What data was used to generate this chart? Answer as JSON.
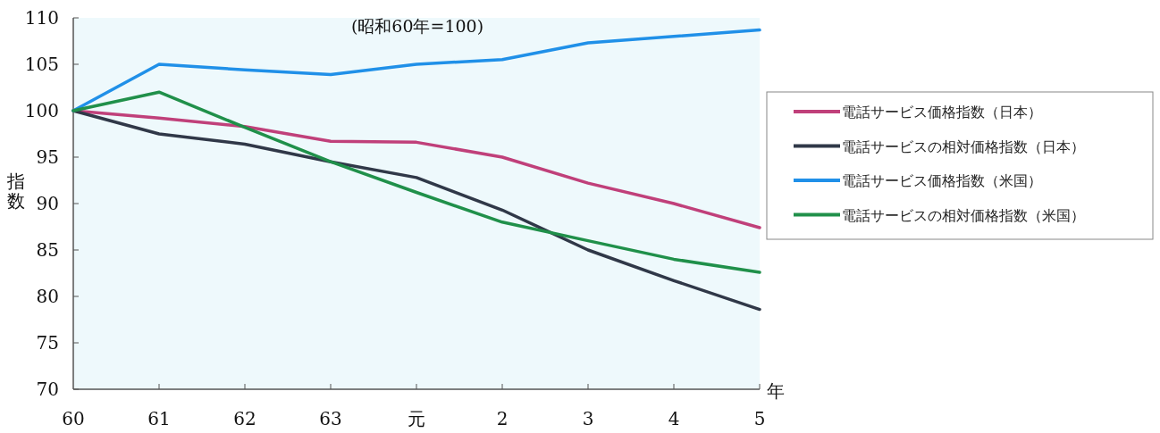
{
  "chart_data": {
    "type": "line",
    "title": "(昭和60年=100)",
    "xlabel": "年",
    "ylabel": "指数",
    "categories": [
      "60",
      "61",
      "62",
      "63",
      "元",
      "2",
      "3",
      "4",
      "5"
    ],
    "ylim": [
      70,
      110
    ],
    "yticks": [
      70,
      75,
      80,
      85,
      90,
      95,
      100,
      105,
      110
    ],
    "legend": "right",
    "series": [
      {
        "name": "電話サービス価格指数（日本）",
        "color": "#c0407a",
        "values": [
          100,
          99.2,
          98.3,
          96.7,
          96.6,
          95,
          92.2,
          90,
          87.4
        ]
      },
      {
        "name": "電話サービスの相対価格指数（日本）",
        "color": "#303848",
        "values": [
          100,
          97.5,
          96.4,
          94.5,
          92.8,
          89.3,
          85,
          81.7,
          78.6
        ]
      },
      {
        "name": "電話サービス価格指数（米国）",
        "color": "#2090e8",
        "values": [
          100,
          105,
          104.4,
          103.9,
          105,
          105.5,
          107.3,
          108,
          108.7
        ]
      },
      {
        "name": "電話サービスの相対価格指数（米国）",
        "color": "#20904a",
        "values": [
          100,
          102,
          98.2,
          94.5,
          91.2,
          88,
          86,
          84,
          82.6
        ]
      }
    ]
  }
}
